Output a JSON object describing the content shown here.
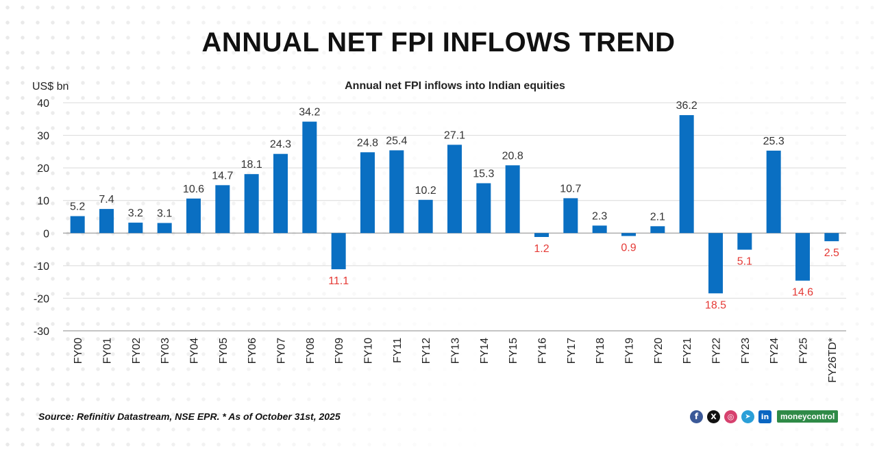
{
  "page": {
    "title": "ANNUAL NET FPI INFLOWS TREND",
    "source": "Source: Refinitiv Datastream, NSE EPR. * As of October 31st, 2025",
    "brand": "moneycontrol",
    "social_icons": [
      "facebook-icon",
      "x-icon",
      "instagram-icon",
      "telegram-icon",
      "linkedin-icon"
    ]
  },
  "chart_data": {
    "type": "bar",
    "title": "Annual net FPI inflows into Indian equities",
    "ylabel": "US$ bn",
    "xlabel": "",
    "ylim": [
      -30,
      40
    ],
    "yticks": [
      40,
      30,
      20,
      10,
      0,
      -10,
      -20,
      -30
    ],
    "grid": true,
    "categories": [
      "FY00",
      "FY01",
      "FY02",
      "FY03",
      "FY04",
      "FY05",
      "FY06",
      "FY07",
      "FY08",
      "FY09",
      "FY10",
      "FY11",
      "FY12",
      "FY13",
      "FY14",
      "FY15",
      "FY16",
      "FY17",
      "FY18",
      "FY19",
      "FY20",
      "FY21",
      "FY22",
      "FY23",
      "FY24",
      "FY25",
      "FY26TD*"
    ],
    "values": [
      5.2,
      7.4,
      3.2,
      3.1,
      10.6,
      14.7,
      18.1,
      24.3,
      34.2,
      -11.1,
      24.8,
      25.4,
      10.2,
      27.1,
      15.3,
      20.8,
      -1.2,
      10.7,
      2.3,
      -0.9,
      2.1,
      36.2,
      -18.5,
      -5.1,
      25.3,
      -14.6,
      -2.5
    ],
    "data_labels": [
      "5.2",
      "7.4",
      "3.2",
      "3.1",
      "10.6",
      "14.7",
      "18.1",
      "24.3",
      "34.2",
      "11.1",
      "24.8",
      "25.4",
      "10.2",
      "27.1",
      "15.3",
      "20.8",
      "1.2",
      "10.7",
      "2.3",
      "0.9",
      "2.1",
      "36.2",
      "18.5",
      "5.1",
      "25.3",
      "14.6",
      "2.5"
    ],
    "colors": {
      "bar": "#0a6fc2",
      "positive_label": "#333333",
      "negative_label": "#e53935",
      "grid": "#d9d9d9",
      "axis": "#888888",
      "text": "#222222"
    }
  }
}
